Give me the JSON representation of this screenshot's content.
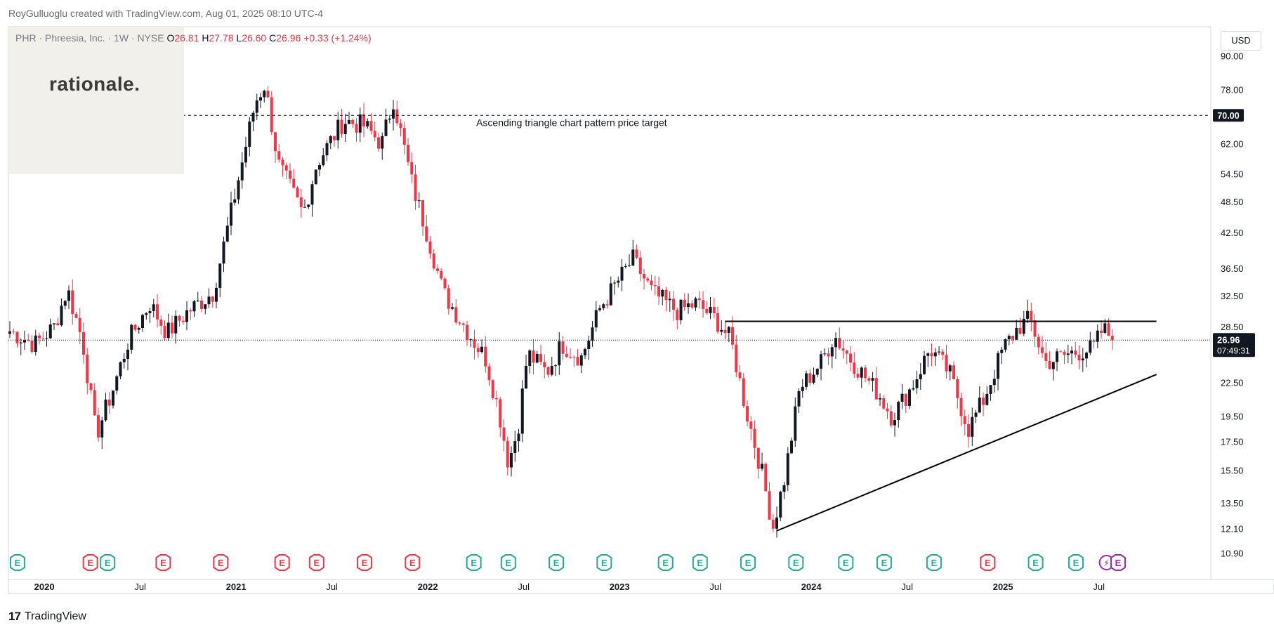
{
  "header": {
    "attribution": "RoyGulluoglu created with TradingView.com, Aug 01, 2025 08:10 UTC-4",
    "symbol": "PHR · Phreesia, Inc. · 1W · NYSE",
    "open_label": "O",
    "open": "26.81",
    "high_label": "H",
    "high": "27.78",
    "low_label": "L",
    "low": "26.60",
    "close_label": "C",
    "close": "26.96",
    "change": "+0.33 (+1.24%)"
  },
  "logo": {
    "text": "rationale."
  },
  "currency": "USD",
  "footer": {
    "brand": "TradingView",
    "brand_icon": "tradingview-logo-icon"
  },
  "colors": {
    "up": "#131722",
    "down": "#f23645",
    "earnings_green": "#22ab94",
    "earnings_red": "#f23645",
    "dividend_purple": "#9c27b0"
  },
  "chart_data": {
    "type": "candlestick",
    "title": "",
    "ylabel": "",
    "xlabel": "",
    "scale": "log",
    "ylim": [
      10.5,
      95
    ],
    "y_ticks": [
      "90.00",
      "78.00",
      "70.00",
      "62.00",
      "54.50",
      "48.50",
      "42.50",
      "36.50",
      "32.50",
      "28.50",
      "26.96",
      "22.50",
      "19.50",
      "17.50",
      "15.50",
      "13.50",
      "12.10",
      "10.90"
    ],
    "y_tick_values": [
      90,
      78,
      70,
      62,
      54.5,
      48.5,
      42.5,
      36.5,
      32.5,
      28.5,
      26.96,
      22.5,
      19.5,
      17.5,
      15.5,
      13.5,
      12.1,
      10.9
    ],
    "x_ticks": [
      {
        "label": "2020",
        "t": 2020.0,
        "bold": true
      },
      {
        "label": "Jul",
        "t": 2020.5,
        "bold": false
      },
      {
        "label": "2021",
        "t": 2021.0,
        "bold": true
      },
      {
        "label": "Jul",
        "t": 2021.5,
        "bold": false
      },
      {
        "label": "2022",
        "t": 2022.0,
        "bold": true
      },
      {
        "label": "Jul",
        "t": 2022.5,
        "bold": false
      },
      {
        "label": "2023",
        "t": 2023.0,
        "bold": true
      },
      {
        "label": "Jul",
        "t": 2023.5,
        "bold": false
      },
      {
        "label": "2024",
        "t": 2024.0,
        "bold": true
      },
      {
        "label": "Jul",
        "t": 2024.5,
        "bold": false
      },
      {
        "label": "2025",
        "t": 2025.0,
        "bold": true
      },
      {
        "label": "Jul",
        "t": 2025.5,
        "bold": false
      }
    ],
    "last_price": {
      "value": 26.96,
      "label": "26.96",
      "countdown": "07:49:31"
    },
    "price_target": {
      "value": 70.0,
      "label": "70.00",
      "annotation": "Ascending triangle chart pattern price target"
    },
    "resistance_line": {
      "t1": 2023.55,
      "t2": 2025.8,
      "value": 29.2
    },
    "support_line": {
      "t1": 2023.82,
      "value1": 12.0,
      "t2": 2025.8,
      "value2": 23.3
    },
    "anchors": [
      {
        "t": 2019.82,
        "c": 28.0
      },
      {
        "t": 2019.95,
        "c": 26.5
      },
      {
        "t": 2020.05,
        "c": 28.5
      },
      {
        "t": 2020.12,
        "c": 33.5
      },
      {
        "t": 2020.2,
        "c": 26.8
      },
      {
        "t": 2020.27,
        "c": 18.0
      },
      {
        "t": 2020.36,
        "c": 22.0
      },
      {
        "t": 2020.44,
        "c": 27.0
      },
      {
        "t": 2020.55,
        "c": 31.5
      },
      {
        "t": 2020.64,
        "c": 27.8
      },
      {
        "t": 2020.75,
        "c": 30.5
      },
      {
        "t": 2020.88,
        "c": 33.0
      },
      {
        "t": 2020.94,
        "c": 41.0
      },
      {
        "t": 2021.03,
        "c": 57.0
      },
      {
        "t": 2021.1,
        "c": 74.0
      },
      {
        "t": 2021.15,
        "c": 80.0
      },
      {
        "t": 2021.22,
        "c": 57.0
      },
      {
        "t": 2021.35,
        "c": 46.0
      },
      {
        "t": 2021.42,
        "c": 57.0
      },
      {
        "t": 2021.56,
        "c": 68.5
      },
      {
        "t": 2021.67,
        "c": 67.0
      },
      {
        "t": 2021.76,
        "c": 62.0
      },
      {
        "t": 2021.82,
        "c": 75.0
      },
      {
        "t": 2021.92,
        "c": 52.0
      },
      {
        "t": 2022.0,
        "c": 42.0
      },
      {
        "t": 2022.08,
        "c": 33.0
      },
      {
        "t": 2022.18,
        "c": 29.0
      },
      {
        "t": 2022.25,
        "c": 26.5
      },
      {
        "t": 2022.3,
        "c": 25.0
      },
      {
        "t": 2022.37,
        "c": 20.0
      },
      {
        "t": 2022.42,
        "c": 16.0
      },
      {
        "t": 2022.47,
        "c": 18.5
      },
      {
        "t": 2022.52,
        "c": 25.5
      },
      {
        "t": 2022.62,
        "c": 23.5
      },
      {
        "t": 2022.7,
        "c": 26.5
      },
      {
        "t": 2022.8,
        "c": 25.0
      },
      {
        "t": 2022.9,
        "c": 31.0
      },
      {
        "t": 2023.0,
        "c": 35.0
      },
      {
        "t": 2023.07,
        "c": 38.0
      },
      {
        "t": 2023.17,
        "c": 33.0
      },
      {
        "t": 2023.3,
        "c": 30.5
      },
      {
        "t": 2023.4,
        "c": 31.5
      },
      {
        "t": 2023.5,
        "c": 29.5
      },
      {
        "t": 2023.58,
        "c": 27.0
      },
      {
        "t": 2023.66,
        "c": 20.0
      },
      {
        "t": 2023.74,
        "c": 15.5
      },
      {
        "t": 2023.8,
        "c": 12.2
      },
      {
        "t": 2023.86,
        "c": 15.0
      },
      {
        "t": 2023.94,
        "c": 22.0
      },
      {
        "t": 2024.05,
        "c": 24.5
      },
      {
        "t": 2024.12,
        "c": 27.5
      },
      {
        "t": 2024.2,
        "c": 25.0
      },
      {
        "t": 2024.35,
        "c": 21.5
      },
      {
        "t": 2024.42,
        "c": 19.5
      },
      {
        "t": 2024.52,
        "c": 22.0
      },
      {
        "t": 2024.62,
        "c": 26.0
      },
      {
        "t": 2024.72,
        "c": 23.5
      },
      {
        "t": 2024.82,
        "c": 18.5
      },
      {
        "t": 2024.9,
        "c": 21.0
      },
      {
        "t": 2025.0,
        "c": 26.0
      },
      {
        "t": 2025.08,
        "c": 28.5
      },
      {
        "t": 2025.14,
        "c": 29.5
      },
      {
        "t": 2025.22,
        "c": 24.5
      },
      {
        "t": 2025.35,
        "c": 25.5
      },
      {
        "t": 2025.47,
        "c": 26.0
      },
      {
        "t": 2025.52,
        "c": 28.3
      },
      {
        "t": 2025.58,
        "c": 26.96
      }
    ],
    "earnings_markers": [
      {
        "t": 2019.86,
        "type": "E",
        "color": "green"
      },
      {
        "t": 2020.24,
        "type": "E",
        "color": "red"
      },
      {
        "t": 2020.33,
        "type": "E",
        "color": "green"
      },
      {
        "t": 2020.62,
        "type": "E",
        "color": "red"
      },
      {
        "t": 2020.92,
        "type": "E",
        "color": "red"
      },
      {
        "t": 2021.24,
        "type": "E",
        "color": "red"
      },
      {
        "t": 2021.42,
        "type": "E",
        "color": "red"
      },
      {
        "t": 2021.67,
        "type": "E",
        "color": "red"
      },
      {
        "t": 2021.92,
        "type": "E",
        "color": "red"
      },
      {
        "t": 2022.24,
        "type": "E",
        "color": "green"
      },
      {
        "t": 2022.42,
        "type": "E",
        "color": "green"
      },
      {
        "t": 2022.67,
        "type": "E",
        "color": "green"
      },
      {
        "t": 2022.92,
        "type": "E",
        "color": "green"
      },
      {
        "t": 2023.24,
        "type": "E",
        "color": "green"
      },
      {
        "t": 2023.42,
        "type": "E",
        "color": "green"
      },
      {
        "t": 2023.67,
        "type": "E",
        "color": "green"
      },
      {
        "t": 2023.92,
        "type": "E",
        "color": "green"
      },
      {
        "t": 2024.18,
        "type": "E",
        "color": "green"
      },
      {
        "t": 2024.38,
        "type": "E",
        "color": "green"
      },
      {
        "t": 2024.64,
        "type": "E",
        "color": "green"
      },
      {
        "t": 2024.92,
        "type": "E",
        "color": "red"
      },
      {
        "t": 2025.17,
        "type": "E",
        "color": "green"
      },
      {
        "t": 2025.38,
        "type": "E",
        "color": "green"
      },
      {
        "t": 2025.54,
        "type": "dividend",
        "color": "purple"
      },
      {
        "t": 2025.6,
        "type": "E",
        "color": "purple"
      }
    ],
    "grid": false,
    "legend": "none"
  }
}
